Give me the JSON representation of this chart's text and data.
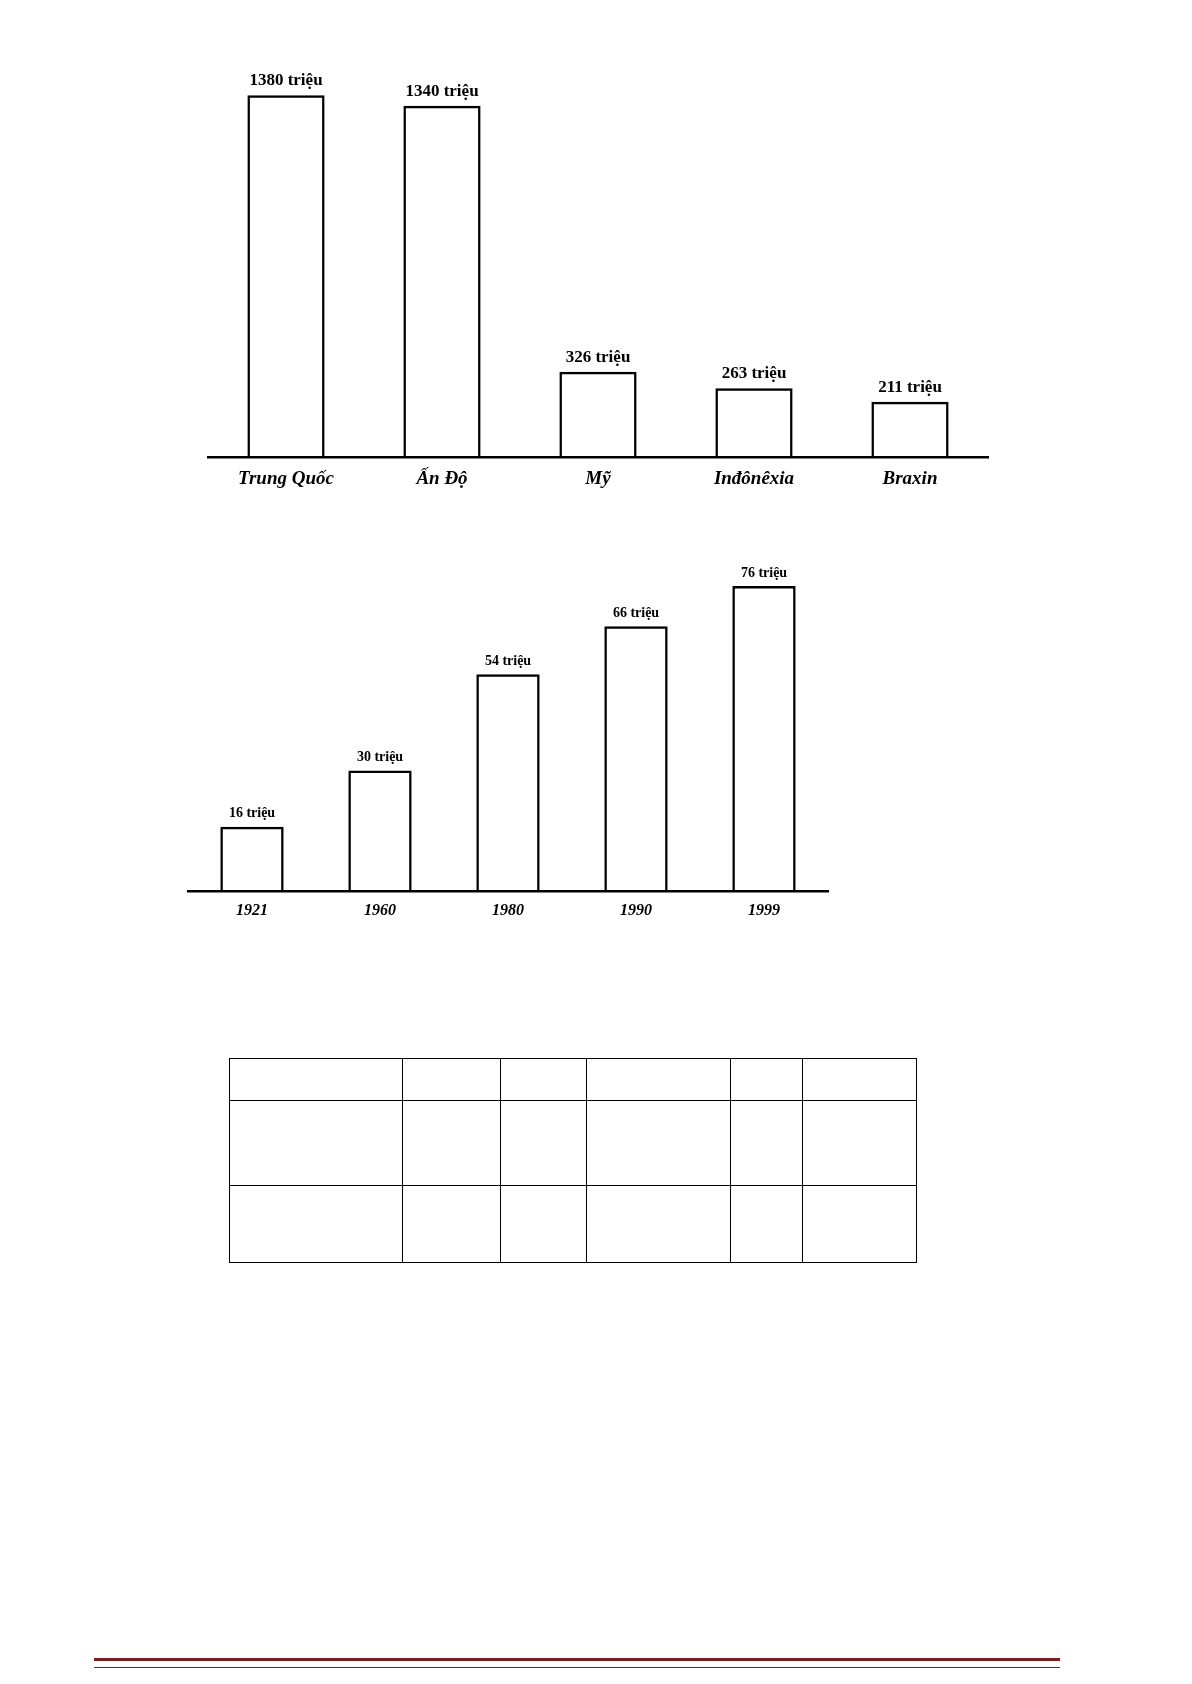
{
  "chart_data": [
    {
      "type": "bar",
      "categories": [
        "Trung Quốc",
        "Ấn Độ",
        "Mỹ",
        "Inđônêxia",
        "Braxin"
      ],
      "values": [
        1380,
        1340,
        326,
        263,
        211
      ],
      "color": "#000000",
      "value_labels": [
        "1380 triệu",
        "1340 triệu",
        "326 triệu",
        "263 triệu",
        "211 triệu"
      ],
      "tick_labels": "x",
      "grid": false,
      "legend": false
    },
    {
      "type": "bar",
      "categories": [
        "1921",
        "1960",
        "1980",
        "1990",
        "1999"
      ],
      "values": [
        16,
        30,
        54,
        66,
        76
      ],
      "color": "#000000",
      "value_labels": [
        "16 triệu",
        "30 triệu",
        "54 triệu",
        "66 triệu",
        "76 triệu"
      ],
      "tick_labels": "x",
      "grid": false,
      "legend": false
    }
  ]
}
